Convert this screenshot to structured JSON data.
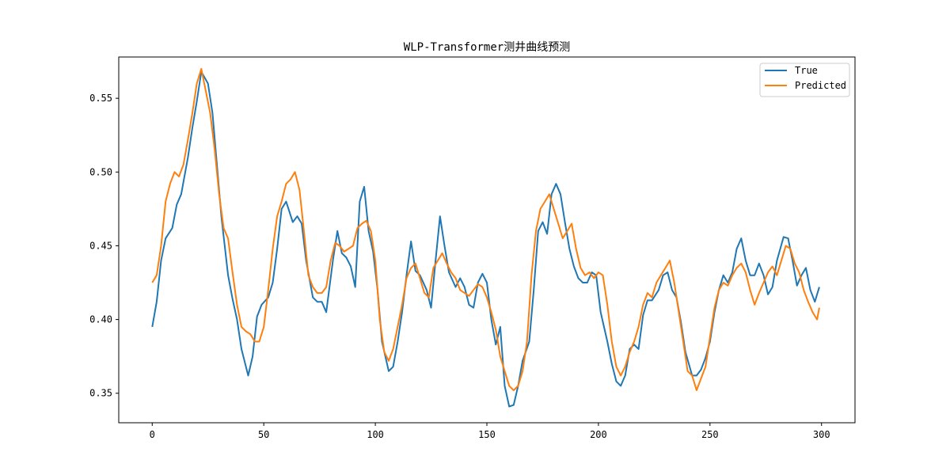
{
  "chart_data": {
    "type": "line",
    "title": "WLP-Transformer测井曲线预测",
    "xlabel": "",
    "ylabel": "",
    "xlim": [
      -15,
      315
    ],
    "ylim": [
      0.33,
      0.578
    ],
    "xticks": [
      0,
      50,
      100,
      150,
      200,
      250,
      300
    ],
    "yticks": [
      0.35,
      0.4,
      0.45,
      0.5,
      0.55
    ],
    "ytick_labels": [
      "0.35",
      "0.40",
      "0.45",
      "0.50",
      "0.55"
    ],
    "grid": false,
    "legend_position": "top-right",
    "series": [
      {
        "name": "True",
        "color": "#1f77b4",
        "points": [
          [
            0,
            0.395
          ],
          [
            2,
            0.412
          ],
          [
            4,
            0.44
          ],
          [
            6,
            0.455
          ],
          [
            9,
            0.462
          ],
          [
            11,
            0.478
          ],
          [
            13,
            0.485
          ],
          [
            16,
            0.51
          ],
          [
            18,
            0.53
          ],
          [
            20,
            0.548
          ],
          [
            22,
            0.568
          ],
          [
            25,
            0.56
          ],
          [
            27,
            0.54
          ],
          [
            29,
            0.505
          ],
          [
            31,
            0.47
          ],
          [
            34,
            0.43
          ],
          [
            36,
            0.414
          ],
          [
            38,
            0.4
          ],
          [
            40,
            0.38
          ],
          [
            43,
            0.362
          ],
          [
            45,
            0.375
          ],
          [
            47,
            0.402
          ],
          [
            49,
            0.41
          ],
          [
            52,
            0.415
          ],
          [
            54,
            0.425
          ],
          [
            56,
            0.448
          ],
          [
            58,
            0.475
          ],
          [
            60,
            0.48
          ],
          [
            63,
            0.466
          ],
          [
            65,
            0.47
          ],
          [
            67,
            0.465
          ],
          [
            69,
            0.44
          ],
          [
            72,
            0.415
          ],
          [
            74,
            0.412
          ],
          [
            76,
            0.412
          ],
          [
            78,
            0.405
          ],
          [
            81,
            0.44
          ],
          [
            83,
            0.46
          ],
          [
            85,
            0.445
          ],
          [
            87,
            0.442
          ],
          [
            89,
            0.436
          ],
          [
            91,
            0.422
          ],
          [
            93,
            0.48
          ],
          [
            95,
            0.49
          ],
          [
            97,
            0.46
          ],
          [
            99,
            0.446
          ],
          [
            101,
            0.42
          ],
          [
            103,
            0.385
          ],
          [
            106,
            0.365
          ],
          [
            108,
            0.368
          ],
          [
            110,
            0.385
          ],
          [
            112,
            0.405
          ],
          [
            114,
            0.43
          ],
          [
            116,
            0.453
          ],
          [
            118,
            0.433
          ],
          [
            120,
            0.43
          ],
          [
            123,
            0.42
          ],
          [
            125,
            0.408
          ],
          [
            127,
            0.44
          ],
          [
            129,
            0.47
          ],
          [
            131,
            0.45
          ],
          [
            133,
            0.432
          ],
          [
            136,
            0.422
          ],
          [
            138,
            0.428
          ],
          [
            140,
            0.422
          ],
          [
            142,
            0.41
          ],
          [
            144,
            0.408
          ],
          [
            146,
            0.425
          ],
          [
            148,
            0.431
          ],
          [
            150,
            0.425
          ],
          [
            152,
            0.4
          ],
          [
            154,
            0.383
          ],
          [
            156,
            0.395
          ],
          [
            158,
            0.355
          ],
          [
            160,
            0.341
          ],
          [
            162,
            0.342
          ],
          [
            164,
            0.355
          ],
          [
            166,
            0.372
          ],
          [
            169,
            0.385
          ],
          [
            171,
            0.42
          ],
          [
            173,
            0.46
          ],
          [
            175,
            0.466
          ],
          [
            177,
            0.458
          ],
          [
            179,
            0.485
          ],
          [
            181,
            0.492
          ],
          [
            183,
            0.485
          ],
          [
            185,
            0.466
          ],
          [
            187,
            0.448
          ],
          [
            189,
            0.436
          ],
          [
            191,
            0.428
          ],
          [
            193,
            0.425
          ],
          [
            195,
            0.425
          ],
          [
            197,
            0.432
          ],
          [
            199,
            0.43
          ],
          [
            201,
            0.405
          ],
          [
            204,
            0.385
          ],
          [
            206,
            0.37
          ],
          [
            208,
            0.358
          ],
          [
            210,
            0.355
          ],
          [
            212,
            0.362
          ],
          [
            214,
            0.38
          ],
          [
            216,
            0.383
          ],
          [
            218,
            0.38
          ],
          [
            220,
            0.403
          ],
          [
            222,
            0.413
          ],
          [
            224,
            0.413
          ],
          [
            227,
            0.42
          ],
          [
            229,
            0.43
          ],
          [
            231,
            0.432
          ],
          [
            233,
            0.42
          ],
          [
            235,
            0.415
          ],
          [
            237,
            0.398
          ],
          [
            239,
            0.378
          ],
          [
            242,
            0.362
          ],
          [
            244,
            0.362
          ],
          [
            246,
            0.366
          ],
          [
            248,
            0.374
          ],
          [
            250,
            0.385
          ],
          [
            252,
            0.405
          ],
          [
            254,
            0.42
          ],
          [
            256,
            0.43
          ],
          [
            258,
            0.425
          ],
          [
            260,
            0.432
          ],
          [
            262,
            0.448
          ],
          [
            264,
            0.455
          ],
          [
            266,
            0.44
          ],
          [
            268,
            0.43
          ],
          [
            270,
            0.43
          ],
          [
            272,
            0.438
          ],
          [
            274,
            0.43
          ],
          [
            276,
            0.417
          ],
          [
            278,
            0.422
          ],
          [
            280,
            0.44
          ],
          [
            283,
            0.456
          ],
          [
            285,
            0.455
          ],
          [
            287,
            0.44
          ],
          [
            289,
            0.423
          ],
          [
            291,
            0.43
          ],
          [
            293,
            0.435
          ],
          [
            295,
            0.42
          ],
          [
            297,
            0.412
          ],
          [
            299,
            0.422
          ]
        ]
      },
      {
        "name": "Predicted",
        "color": "#ff7f0e",
        "points": [
          [
            0,
            0.425
          ],
          [
            2,
            0.43
          ],
          [
            4,
            0.45
          ],
          [
            6,
            0.48
          ],
          [
            8,
            0.492
          ],
          [
            10,
            0.5
          ],
          [
            12,
            0.497
          ],
          [
            14,
            0.505
          ],
          [
            16,
            0.522
          ],
          [
            18,
            0.54
          ],
          [
            20,
            0.56
          ],
          [
            22,
            0.57
          ],
          [
            24,
            0.555
          ],
          [
            26,
            0.54
          ],
          [
            28,
            0.515
          ],
          [
            30,
            0.485
          ],
          [
            32,
            0.462
          ],
          [
            34,
            0.455
          ],
          [
            36,
            0.432
          ],
          [
            38,
            0.41
          ],
          [
            40,
            0.395
          ],
          [
            42,
            0.392
          ],
          [
            44,
            0.39
          ],
          [
            46,
            0.385
          ],
          [
            48,
            0.385
          ],
          [
            50,
            0.395
          ],
          [
            52,
            0.42
          ],
          [
            54,
            0.448
          ],
          [
            56,
            0.47
          ],
          [
            58,
            0.48
          ],
          [
            60,
            0.492
          ],
          [
            62,
            0.495
          ],
          [
            64,
            0.5
          ],
          [
            66,
            0.488
          ],
          [
            68,
            0.46
          ],
          [
            70,
            0.43
          ],
          [
            72,
            0.422
          ],
          [
            74,
            0.418
          ],
          [
            76,
            0.418
          ],
          [
            78,
            0.422
          ],
          [
            80,
            0.44
          ],
          [
            82,
            0.452
          ],
          [
            84,
            0.45
          ],
          [
            86,
            0.446
          ],
          [
            88,
            0.448
          ],
          [
            90,
            0.45
          ],
          [
            92,
            0.462
          ],
          [
            94,
            0.465
          ],
          [
            96,
            0.467
          ],
          [
            98,
            0.46
          ],
          [
            100,
            0.44
          ],
          [
            102,
            0.4
          ],
          [
            104,
            0.378
          ],
          [
            106,
            0.372
          ],
          [
            108,
            0.38
          ],
          [
            110,
            0.395
          ],
          [
            112,
            0.41
          ],
          [
            114,
            0.428
          ],
          [
            116,
            0.435
          ],
          [
            118,
            0.438
          ],
          [
            120,
            0.428
          ],
          [
            122,
            0.418
          ],
          [
            124,
            0.415
          ],
          [
            126,
            0.435
          ],
          [
            128,
            0.44
          ],
          [
            130,
            0.445
          ],
          [
            132,
            0.438
          ],
          [
            134,
            0.432
          ],
          [
            136,
            0.428
          ],
          [
            138,
            0.42
          ],
          [
            140,
            0.418
          ],
          [
            142,
            0.416
          ],
          [
            144,
            0.42
          ],
          [
            146,
            0.424
          ],
          [
            148,
            0.422
          ],
          [
            150,
            0.415
          ],
          [
            152,
            0.405
          ],
          [
            154,
            0.393
          ],
          [
            156,
            0.375
          ],
          [
            158,
            0.365
          ],
          [
            160,
            0.355
          ],
          [
            162,
            0.352
          ],
          [
            164,
            0.355
          ],
          [
            166,
            0.365
          ],
          [
            168,
            0.385
          ],
          [
            170,
            0.43
          ],
          [
            172,
            0.46
          ],
          [
            174,
            0.475
          ],
          [
            176,
            0.48
          ],
          [
            178,
            0.485
          ],
          [
            180,
            0.475
          ],
          [
            182,
            0.465
          ],
          [
            184,
            0.455
          ],
          [
            186,
            0.46
          ],
          [
            188,
            0.465
          ],
          [
            190,
            0.448
          ],
          [
            192,
            0.435
          ],
          [
            194,
            0.43
          ],
          [
            196,
            0.432
          ],
          [
            198,
            0.428
          ],
          [
            200,
            0.432
          ],
          [
            202,
            0.43
          ],
          [
            204,
            0.41
          ],
          [
            206,
            0.385
          ],
          [
            208,
            0.368
          ],
          [
            210,
            0.362
          ],
          [
            212,
            0.368
          ],
          [
            214,
            0.378
          ],
          [
            216,
            0.385
          ],
          [
            218,
            0.395
          ],
          [
            220,
            0.41
          ],
          [
            222,
            0.418
          ],
          [
            224,
            0.415
          ],
          [
            226,
            0.425
          ],
          [
            228,
            0.43
          ],
          [
            230,
            0.435
          ],
          [
            232,
            0.44
          ],
          [
            234,
            0.425
          ],
          [
            236,
            0.405
          ],
          [
            238,
            0.385
          ],
          [
            240,
            0.365
          ],
          [
            242,
            0.362
          ],
          [
            244,
            0.352
          ],
          [
            246,
            0.36
          ],
          [
            248,
            0.368
          ],
          [
            250,
            0.388
          ],
          [
            252,
            0.408
          ],
          [
            254,
            0.42
          ],
          [
            256,
            0.425
          ],
          [
            258,
            0.423
          ],
          [
            260,
            0.43
          ],
          [
            262,
            0.435
          ],
          [
            264,
            0.438
          ],
          [
            266,
            0.432
          ],
          [
            268,
            0.42
          ],
          [
            270,
            0.41
          ],
          [
            272,
            0.418
          ],
          [
            274,
            0.425
          ],
          [
            276,
            0.432
          ],
          [
            278,
            0.436
          ],
          [
            280,
            0.43
          ],
          [
            282,
            0.44
          ],
          [
            284,
            0.45
          ],
          [
            286,
            0.448
          ],
          [
            288,
            0.438
          ],
          [
            290,
            0.432
          ],
          [
            292,
            0.42
          ],
          [
            294,
            0.412
          ],
          [
            296,
            0.405
          ],
          [
            298,
            0.4
          ],
          [
            299,
            0.408
          ]
        ]
      }
    ]
  }
}
